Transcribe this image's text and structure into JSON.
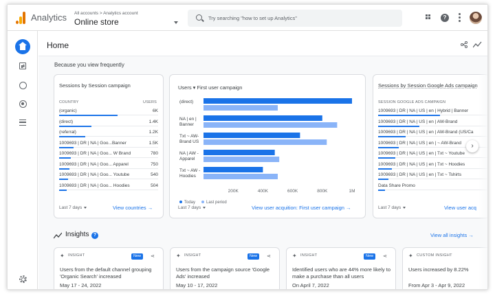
{
  "topbar": {
    "brand": "Analytics",
    "breadcrumb": "All accounts > Analytics account",
    "property": "Online store",
    "search_placeholder": "Try searching \"how to set up Analytics\""
  },
  "page": {
    "title": "Home",
    "section_label": "Because you view frequently"
  },
  "card_campaign": {
    "title": "Sessions by Session campaign",
    "col_left": "COUNTRY",
    "col_right": "USERS",
    "rows": [
      {
        "label": "(organic)",
        "value": "6K",
        "share": 1.0
      },
      {
        "label": "(direct)",
        "value": "1.4K",
        "share": 0.55
      },
      {
        "label": "(referral)",
        "value": "1.2K",
        "share": 0.45
      },
      {
        "label": "1009693 | DR | NA | Goo...Banner",
        "value": "1.5K",
        "share": 0.25
      },
      {
        "label": "1009693 | DR | NA | Goo... W Brand",
        "value": "780",
        "share": 0.2
      },
      {
        "label": "1009693 | DR | NA | Goo... Apparel",
        "value": "750",
        "share": 0.18
      },
      {
        "label": "1009693 | DR | NA | Goo... Youtube",
        "value": "540",
        "share": 0.15
      },
      {
        "label": "1009693 | DR | NA | Goo... Hoodies",
        "value": "504",
        "share": 0.13
      }
    ],
    "range": "Last 7 days",
    "link": "View countries →"
  },
  "card_users": {
    "title": "Users ▾ First user campaign",
    "range": "Last 7 days",
    "link": "View user acquition: First user campaign →"
  },
  "chart_data": {
    "type": "bar",
    "orientation": "horizontal",
    "title": "Users ▾ First user campaign",
    "categories": [
      "(direct)",
      "NA | en | Banner",
      "Txt ~ AW-Brand US",
      "NA | AW - Apparel",
      "Txt ~ AW - Hoodies"
    ],
    "category_lines": [
      [
        "(direct)"
      ],
      [
        "NA | en |",
        "Banner"
      ],
      [
        "Txt ~ AW-",
        "Brand US"
      ],
      [
        "NA | AW -",
        "Apparel"
      ],
      [
        "Txt ~ AW -",
        "Hoodies"
      ]
    ],
    "series": [
      {
        "name": "Today",
        "color": "#1a73e8",
        "values": [
          1000000,
          800000,
          650000,
          480000,
          400000
        ]
      },
      {
        "name": "Last period",
        "color": "#8ab4f8",
        "values": [
          500000,
          900000,
          830000,
          510000,
          500000
        ]
      }
    ],
    "xticks": [
      "200K",
      "400K",
      "600K",
      "800K",
      "1M"
    ],
    "xlim": [
      0,
      1000000
    ],
    "legend": "bottom-left",
    "grid": false
  },
  "card_ads": {
    "title": "Sessions by Session Google Ads campaign",
    "col_left": "SESSION GOOGLE ADS CAMPAIGN",
    "rows": [
      {
        "label": "1009693 | DR | NA | US | en | Hybrid | Banner",
        "share": 0.9
      },
      {
        "label": "1009693 | DR | NA | US | en | AW-Brand",
        "share": 0.6
      },
      {
        "label": "1009693 | DR | NA | US | en | AW-Brand (US/Ca",
        "share": 0.4
      },
      {
        "label": "1009693 | DR | NA | US | en | ~ AW-Brand",
        "share": 0.3
      },
      {
        "label": "1009693 | DR | NA | US | en | Txt ~ Youtube",
        "share": 0.25
      },
      {
        "label": "1009693 | DR | NA | US | en | Txt ~ Hoodies",
        "share": 0.2
      },
      {
        "label": "1009693 | DR | NA | US | en | Txt ~ Tshirts",
        "share": 0.15
      },
      {
        "label": "Data Share Promo",
        "share": 0.1
      }
    ],
    "range": "Last 7 days",
    "link": "View user acq"
  },
  "insights": {
    "title": "Insights",
    "help": "?",
    "view_all": "View all insights →",
    "cards": [
      {
        "type": "INSIGHT",
        "badge": "New",
        "text": "Users from the default channel grouping 'Organic Search' increased",
        "date": "May 17 - 24, 2022"
      },
      {
        "type": "INSIGHT",
        "badge": "New",
        "text": "Users from the campaign source 'Google Ads' increased",
        "date": "May 10 - 17, 2022"
      },
      {
        "type": "INSIGHT",
        "badge": "New",
        "text": "Identified users who are 44% more likely to make a purchase than all users",
        "date": "On April 7, 2022"
      },
      {
        "type": "CUSTOM INSIGHT",
        "badge": "",
        "text": "Users increased by 8.22%",
        "date": "From Apr 3 - Apr 9, 2022"
      }
    ]
  }
}
